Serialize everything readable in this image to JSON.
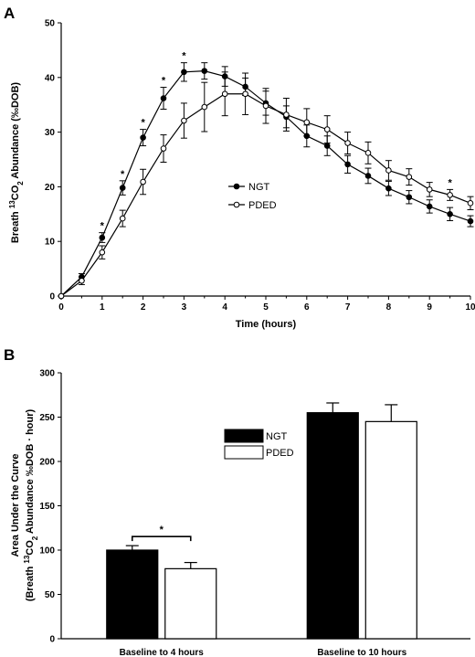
{
  "chart_data": [
    {
      "panel": "A",
      "type": "line",
      "xlabel": "Time (hours)",
      "ylabel_prefix": "Breath ",
      "ylabel_sup": "13",
      "ylabel_rest": "CO",
      "ylabel_sub": "2",
      "ylabel_end": " Abundance (‰DOB)",
      "xlim": [
        0,
        10
      ],
      "ylim": [
        0,
        50
      ],
      "xticks": [
        "0",
        "1",
        "2",
        "3",
        "4",
        "5",
        "6",
        "7",
        "8",
        "9",
        "10"
      ],
      "yticks": [
        "0",
        "10",
        "20",
        "30",
        "40",
        "50"
      ],
      "legend": {
        "position": "center-right",
        "entries": [
          "NGT",
          "PDED"
        ]
      },
      "x": [
        0,
        0.5,
        1,
        1.5,
        2,
        2.5,
        3,
        3.5,
        4,
        4.5,
        5,
        5.5,
        6,
        6.5,
        7,
        7.5,
        8,
        8.5,
        9,
        9.5,
        10
      ],
      "series": [
        {
          "name": "NGT",
          "marker": "filled",
          "values": [
            0,
            3.5,
            10.7,
            19.8,
            29.0,
            36.2,
            41.0,
            41.2,
            40.2,
            38.3,
            35.3,
            32.8,
            29.3,
            27.5,
            24.1,
            22.0,
            19.7,
            18.1,
            16.4,
            15.0,
            13.7
          ],
          "errors": [
            0,
            0.6,
            0.9,
            1.3,
            1.5,
            2.0,
            1.7,
            1.5,
            1.8,
            1.6,
            2.2,
            2.0,
            2.0,
            1.8,
            1.6,
            1.4,
            1.3,
            1.2,
            1.2,
            1.2,
            1.0
          ]
        },
        {
          "name": "PDED",
          "marker": "open",
          "values": [
            0,
            2.8,
            8.0,
            14.2,
            20.9,
            27.0,
            32.1,
            34.6,
            37.0,
            37.0,
            34.8,
            33.2,
            31.8,
            30.5,
            28.0,
            26.2,
            23.0,
            21.8,
            19.5,
            18.5,
            17.0
          ],
          "errors": [
            0,
            0.7,
            1.2,
            1.5,
            2.3,
            2.5,
            3.2,
            4.5,
            4.0,
            3.8,
            3.2,
            3.0,
            2.5,
            2.5,
            2.0,
            2.0,
            1.8,
            1.5,
            1.3,
            1.0,
            1.2
          ]
        }
      ],
      "significance": {
        "marker": "*",
        "x": [
          1,
          1.5,
          2,
          2.5,
          3,
          9.5
        ]
      }
    },
    {
      "panel": "B",
      "type": "bar",
      "ylabel_line1": "Area Under the Curve",
      "ylabel_line2_prefix": "(Breath ",
      "ylabel_line2_sup": "13",
      "ylabel_line2_rest": "CO",
      "ylabel_line2_sub": "2",
      "ylabel_line2_end": " Abundance ‰DOB · hour)",
      "ylim": [
        0,
        300
      ],
      "yticks": [
        "0",
        "50",
        "100",
        "150",
        "200",
        "250",
        "300"
      ],
      "categories": [
        "Baseline to 4 hours",
        "Baseline to 10 hours"
      ],
      "legend": {
        "position": "center",
        "entries": [
          "NGT",
          "PDED"
        ]
      },
      "series": [
        {
          "name": "NGT",
          "color": "#000000",
          "values": [
            100,
            255
          ],
          "errors": [
            5,
            11
          ]
        },
        {
          "name": "PDED",
          "color": "#ffffff",
          "values": [
            79,
            245
          ],
          "errors": [
            7,
            19
          ]
        }
      ],
      "significance": {
        "marker": "*",
        "category": "Baseline to 4 hours"
      }
    }
  ]
}
